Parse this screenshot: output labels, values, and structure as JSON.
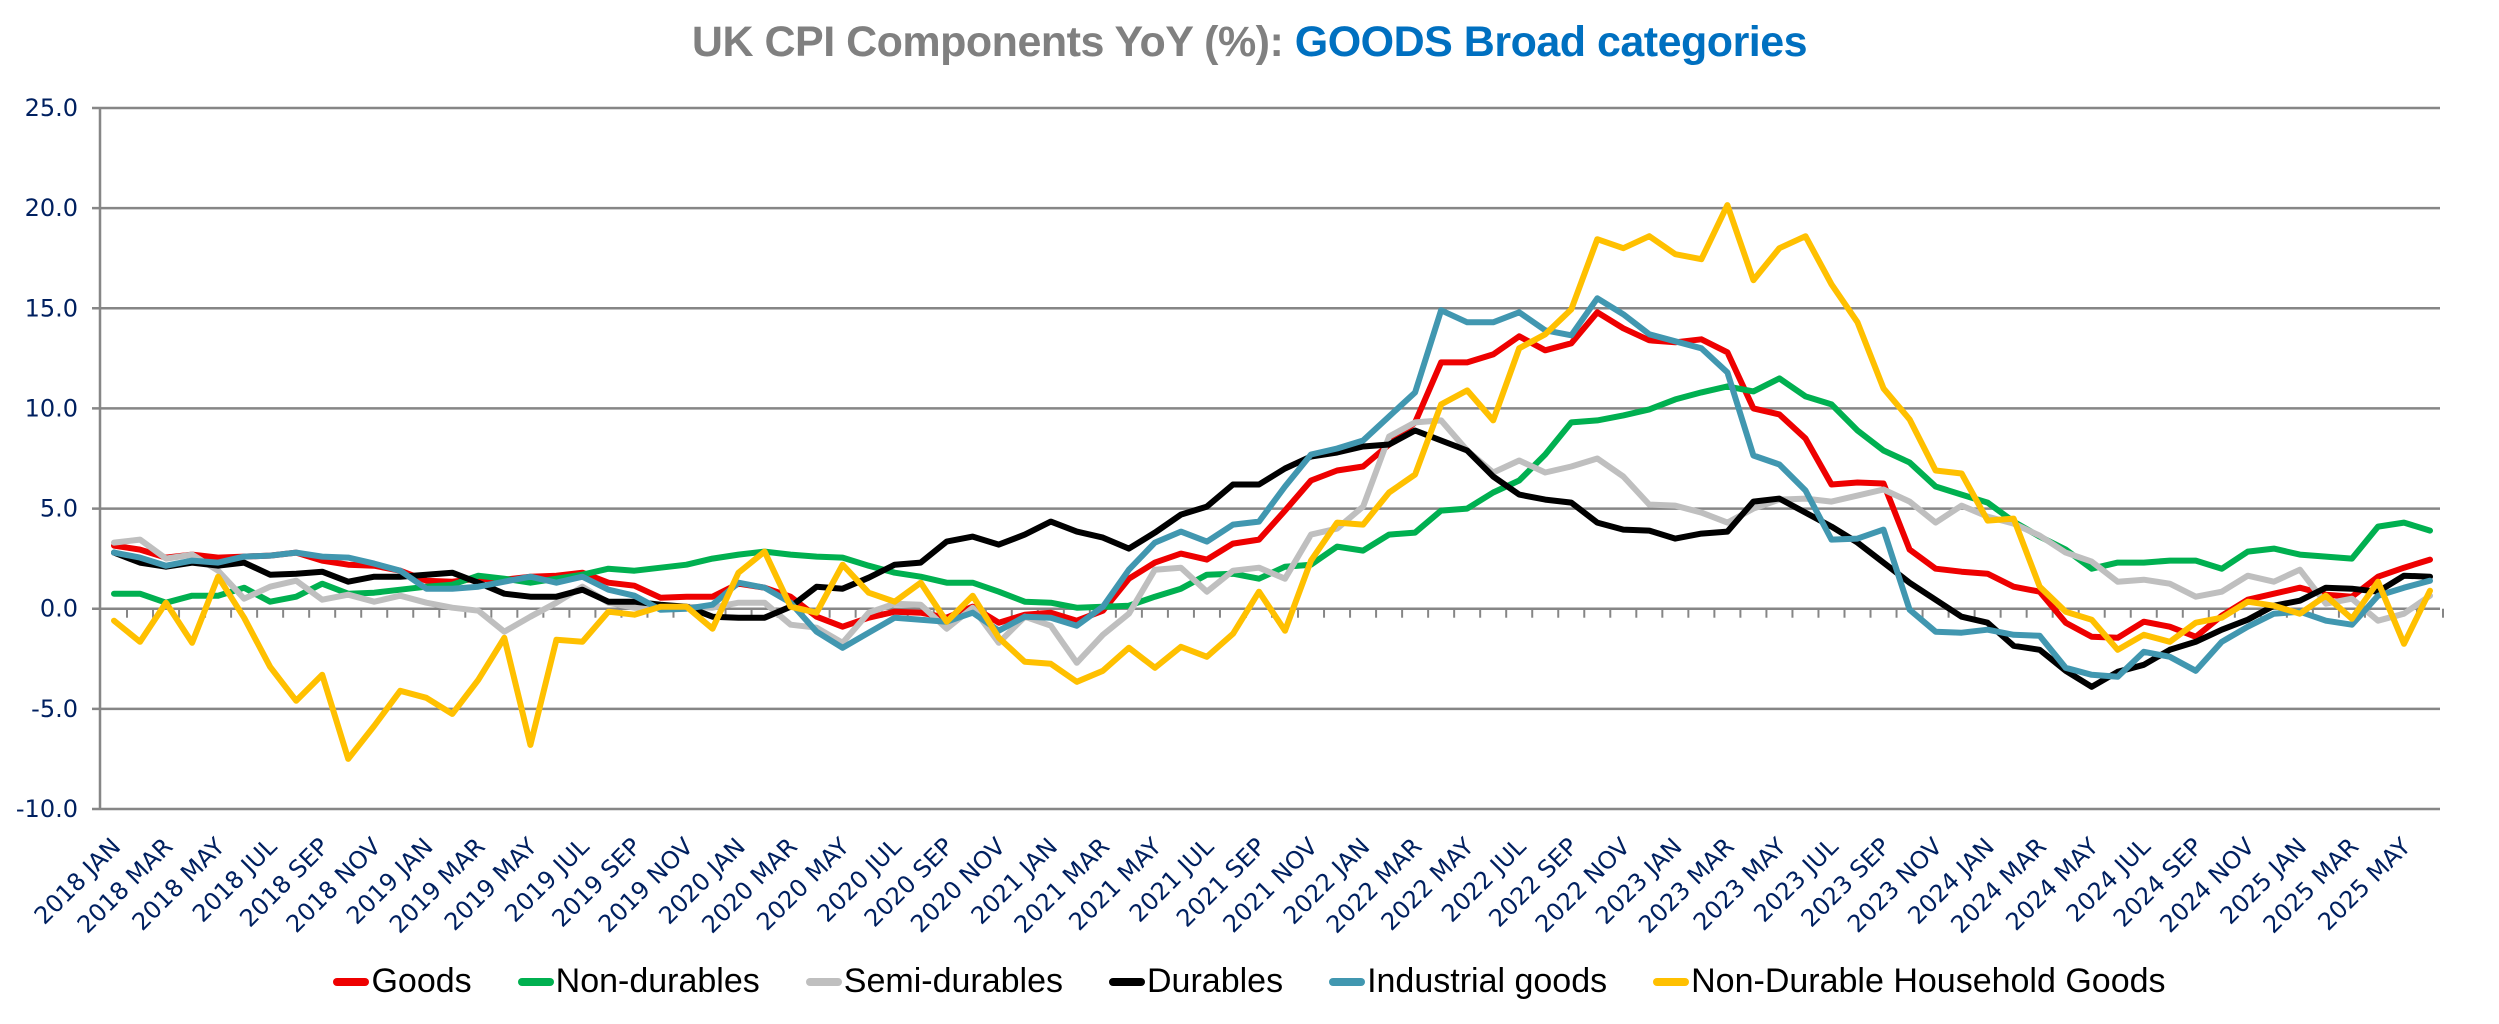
{
  "chart_data": {
    "type": "line",
    "title": "UK CPI Components YoY (%): GOODS Broad categories",
    "title_parts": [
      {
        "text": "UK CPI Components YoY (%): ",
        "color": "#808080"
      },
      {
        "text": "GOODS Broad categories",
        "color": "#0070c0"
      }
    ],
    "xlabel": "",
    "ylabel": "",
    "ylim": [
      -10,
      25
    ],
    "yticks": [
      -10,
      -5,
      0,
      5,
      10,
      15,
      20,
      25
    ],
    "ytick_labels": [
      "-10.0",
      "-5.0",
      "0.0",
      "5.0",
      "10.0",
      "15.0",
      "20.0",
      "25.0"
    ],
    "grid": true,
    "legend_position": "bottom",
    "x_start": "2018 JAN",
    "x_end": "2025 JUN",
    "x_count": 90,
    "xtick_labels": [
      "2018 JAN",
      "2018 MAR",
      "2018 MAY",
      "2018 JUL",
      "2018 SEP",
      "2018 NOV",
      "2019 JAN",
      "2019 MAR",
      "2019 MAY",
      "2019 JUL",
      "2019 SEP",
      "2019 NOV",
      "2020 JAN",
      "2020 MAR",
      "2020 MAY",
      "2020 JUL",
      "2020 SEP",
      "2020 NOV",
      "2021 JAN",
      "2021 MAR",
      "2021 MAY",
      "2021 JUL",
      "2021 SEP",
      "2021 NOV",
      "2022 JAN",
      "2022 MAR",
      "2022 MAY",
      "2022 JUL",
      "2022 SEP",
      "2022 NOV",
      "2023 JAN",
      "2023 MAR",
      "2023 MAY",
      "2023 JUL",
      "2023 SEP",
      "2023 NOV",
      "2024 JAN",
      "2024 MAR",
      "2024 MAY",
      "2024 JUL",
      "2024 SEP",
      "2024 NOV",
      "2025 JAN",
      "2025 MAR",
      "2025 MAY"
    ],
    "series": [
      {
        "name": "Goods",
        "color": "#ee0000",
        "values": [
          3.15,
          2.95,
          2.55,
          2.7,
          2.55,
          2.6,
          2.65,
          2.8,
          2.4,
          2.2,
          2.15,
          1.9,
          1.4,
          1.35,
          1.5,
          1.45,
          1.6,
          1.65,
          1.8,
          1.3,
          1.15,
          0.55,
          0.6,
          0.6,
          1.25,
          1.05,
          0.6,
          -0.4,
          -0.9,
          -0.45,
          -0.15,
          -0.2,
          -0.45,
          0.1,
          -0.7,
          -0.3,
          -0.2,
          -0.6,
          -0.1,
          1.5,
          2.3,
          2.75,
          2.45,
          3.25,
          3.45,
          4.9,
          6.4,
          6.9,
          7.1,
          8.2,
          9.3,
          12.3,
          12.3,
          12.7,
          13.6,
          12.9,
          13.25,
          14.8,
          14.0,
          13.4,
          13.3,
          13.45,
          12.8,
          10.0,
          9.7,
          8.5,
          6.2,
          6.3,
          6.25,
          2.95,
          2.0,
          1.85,
          1.75,
          1.1,
          0.85,
          -0.7,
          -1.4,
          -1.45,
          -0.65,
          -0.9,
          -1.4,
          -0.35,
          0.45,
          0.75,
          1.05,
          0.7,
          0.6,
          1.6,
          2.05,
          2.45
        ]
      },
      {
        "name": "Non-durables",
        "color": "#00b050",
        "values": [
          0.75,
          0.75,
          0.3,
          0.65,
          0.65,
          1.05,
          0.35,
          0.6,
          1.25,
          0.75,
          0.8,
          0.95,
          1.1,
          1.2,
          1.65,
          1.5,
          1.3,
          1.5,
          1.7,
          2.0,
          1.9,
          2.05,
          2.2,
          2.5,
          2.7,
          2.85,
          2.7,
          2.6,
          2.55,
          2.15,
          1.8,
          1.6,
          1.3,
          1.3,
          0.85,
          0.35,
          0.3,
          0.05,
          0.1,
          0.15,
          0.6,
          1.0,
          1.7,
          1.75,
          1.5,
          2.1,
          2.2,
          3.1,
          2.9,
          3.7,
          3.8,
          4.9,
          5.0,
          5.8,
          6.4,
          7.7,
          9.3,
          9.4,
          9.65,
          9.95,
          10.45,
          10.8,
          11.1,
          10.85,
          11.5,
          10.6,
          10.2,
          8.9,
          7.9,
          7.3,
          6.1,
          5.7,
          5.3,
          4.35,
          3.6,
          2.95,
          2.0,
          2.3,
          2.3,
          2.4,
          2.4,
          2.0,
          2.85,
          3.0,
          2.7,
          2.6,
          2.5,
          4.1,
          4.3,
          3.9
        ]
      },
      {
        "name": "Semi-durables",
        "color": "#bfbfbf",
        "values": [
          3.3,
          3.45,
          2.5,
          2.7,
          1.9,
          0.5,
          1.1,
          1.4,
          0.45,
          0.7,
          0.35,
          0.65,
          0.3,
          0.05,
          -0.1,
          -1.15,
          -0.4,
          0.3,
          1.1,
          0.3,
          0.05,
          0.05,
          0.1,
          0.05,
          0.3,
          0.3,
          -0.8,
          -0.95,
          -1.7,
          -0.2,
          0.25,
          0.2,
          -1.0,
          0.05,
          -1.7,
          -0.4,
          -0.85,
          -2.7,
          -1.3,
          -0.25,
          1.95,
          2.05,
          0.85,
          1.9,
          2.05,
          1.5,
          3.7,
          4.0,
          5.1,
          8.6,
          9.3,
          9.4,
          7.9,
          6.8,
          7.4,
          6.8,
          7.1,
          7.5,
          6.6,
          5.2,
          5.15,
          4.8,
          4.3,
          5.0,
          5.45,
          5.5,
          5.35,
          5.65,
          5.95,
          5.35,
          4.3,
          5.15,
          4.6,
          4.25,
          3.65,
          2.8,
          2.35,
          1.35,
          1.45,
          1.25,
          0.6,
          0.85,
          1.65,
          1.35,
          1.95,
          0.25,
          0.5,
          -0.6,
          -0.25,
          0.65
        ]
      },
      {
        "name": "Durables",
        "color": "#000000",
        "values": [
          2.8,
          2.3,
          2.1,
          2.3,
          2.15,
          2.3,
          1.7,
          1.75,
          1.85,
          1.35,
          1.6,
          1.6,
          1.7,
          1.8,
          1.3,
          0.75,
          0.6,
          0.6,
          0.95,
          0.35,
          0.35,
          0.2,
          0.1,
          -0.4,
          -0.45,
          -0.45,
          0.1,
          1.1,
          1.0,
          1.55,
          2.2,
          2.3,
          3.35,
          3.6,
          3.2,
          3.7,
          4.35,
          3.85,
          3.55,
          3.0,
          3.8,
          4.7,
          5.1,
          6.2,
          6.2,
          7.0,
          7.6,
          7.8,
          8.1,
          8.2,
          8.9,
          8.4,
          7.9,
          6.6,
          5.7,
          5.45,
          5.3,
          4.3,
          3.95,
          3.9,
          3.5,
          3.75,
          3.85,
          5.35,
          5.5,
          4.8,
          4.1,
          3.3,
          2.3,
          1.3,
          0.45,
          -0.4,
          -0.7,
          -1.85,
          -2.05,
          -3.1,
          -3.9,
          -3.15,
          -2.8,
          -2.05,
          -1.65,
          -1.05,
          -0.55,
          0.15,
          0.4,
          1.05,
          1.0,
          0.85,
          1.65,
          1.6
        ]
      },
      {
        "name": "Industrial goods",
        "color": "#4197b0",
        "values": [
          2.8,
          2.55,
          2.15,
          2.4,
          2.3,
          2.6,
          2.65,
          2.8,
          2.6,
          2.55,
          2.25,
          1.9,
          1.0,
          1.0,
          1.1,
          1.35,
          1.6,
          1.3,
          1.6,
          0.95,
          0.65,
          -0.05,
          0.0,
          0.2,
          1.3,
          1.05,
          0.3,
          -1.15,
          -1.95,
          -1.2,
          -0.45,
          -0.55,
          -0.65,
          -0.2,
          -1.1,
          -0.4,
          -0.45,
          -0.85,
          0.1,
          1.95,
          3.3,
          3.85,
          3.35,
          4.2,
          4.35,
          6.1,
          7.7,
          8.0,
          8.4,
          9.6,
          10.8,
          14.9,
          14.3,
          14.3,
          14.8,
          13.9,
          13.65,
          15.5,
          14.7,
          13.7,
          13.35,
          13.0,
          11.8,
          7.65,
          7.2,
          5.9,
          3.45,
          3.5,
          3.95,
          -0.05,
          -1.15,
          -1.2,
          -1.05,
          -1.3,
          -1.35,
          -2.95,
          -3.3,
          -3.4,
          -2.15,
          -2.4,
          -3.1,
          -1.65,
          -0.9,
          -0.25,
          -0.15,
          -0.6,
          -0.8,
          0.65,
          1.05,
          1.4
        ]
      },
      {
        "name": "Non-Durable Household Goods",
        "color": "#ffc000",
        "values": [
          -0.6,
          -1.65,
          0.3,
          -1.7,
          1.6,
          -0.45,
          -2.9,
          -4.6,
          -3.3,
          -7.5,
          -5.85,
          -4.1,
          -4.45,
          -5.25,
          -3.55,
          -1.45,
          -6.8,
          -1.55,
          -1.65,
          -0.15,
          -0.3,
          0.1,
          0.1,
          -1.0,
          1.8,
          2.85,
          0.1,
          -0.2,
          2.2,
          0.8,
          0.35,
          1.3,
          -0.65,
          0.65,
          -1.45,
          -2.65,
          -2.75,
          -3.65,
          -3.1,
          -1.95,
          -2.95,
          -1.9,
          -2.4,
          -1.25,
          0.85,
          -1.1,
          2.4,
          4.3,
          4.2,
          5.8,
          6.7,
          10.2,
          10.9,
          9.4,
          13.0,
          13.7,
          14.95,
          18.45,
          18.0,
          18.6,
          17.7,
          17.45,
          20.15,
          16.4,
          18.0,
          18.6,
          16.2,
          14.3,
          11.0,
          9.45,
          6.9,
          6.75,
          4.4,
          4.5,
          1.1,
          -0.15,
          -0.55,
          -2.05,
          -1.3,
          -1.65,
          -0.7,
          -0.45,
          0.35,
          0.15,
          -0.25,
          0.65,
          -0.5,
          1.35,
          -1.75,
          0.9
        ]
      }
    ]
  }
}
